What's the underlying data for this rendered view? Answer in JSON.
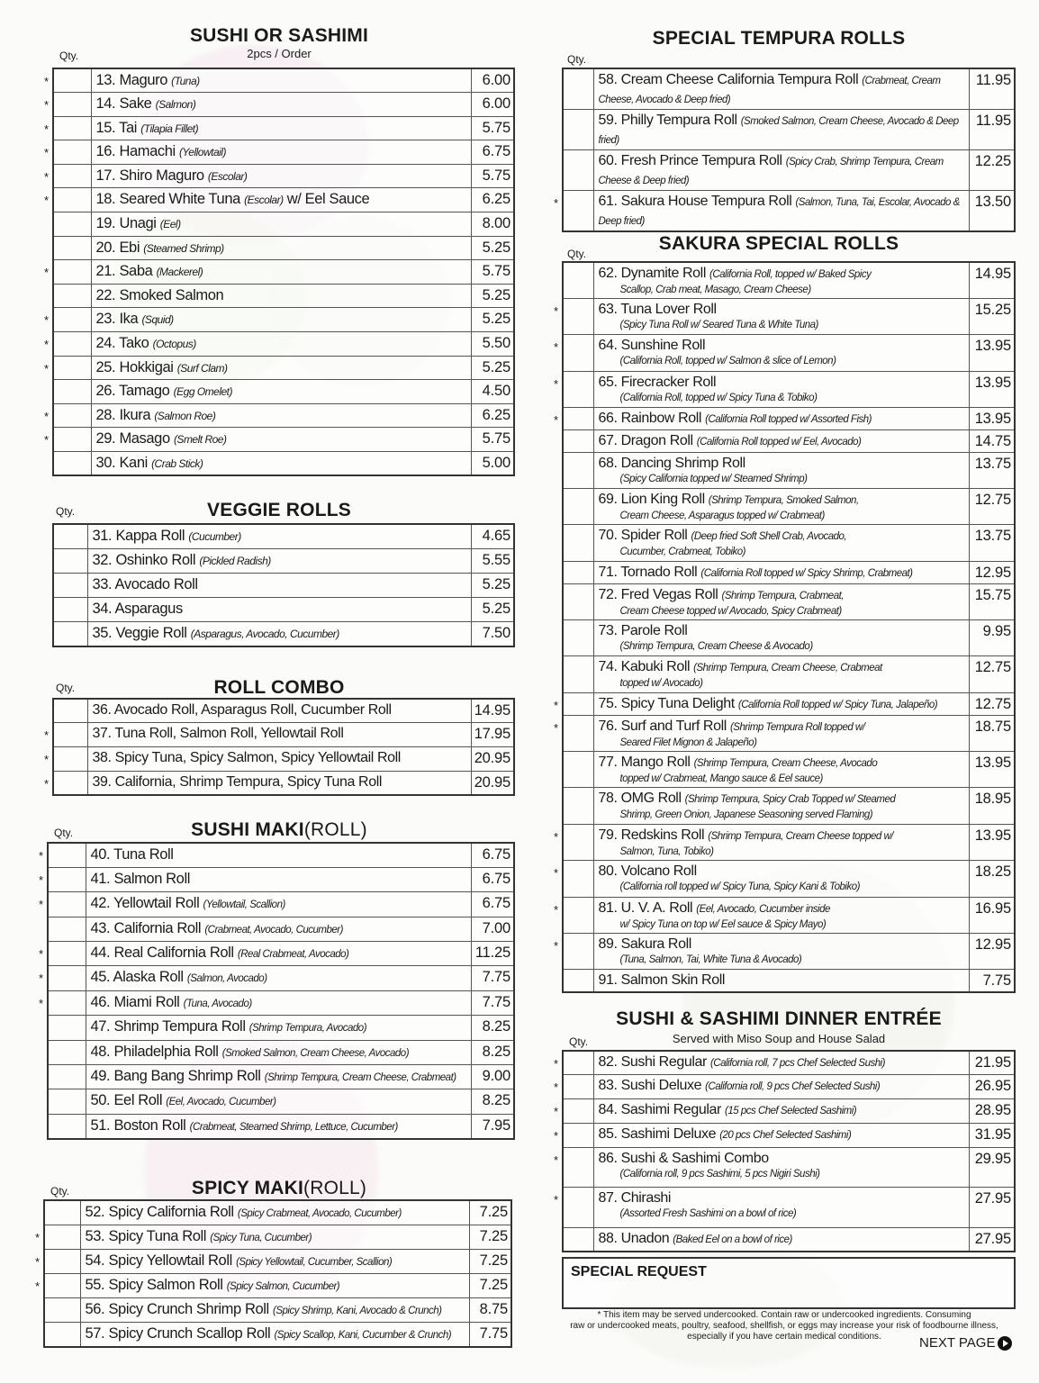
{
  "qty_label": "Qty.",
  "sections": {
    "sushi": {
      "title": "SUSHI OR SASHIMI",
      "subtitle": "2pcs / Order",
      "items": [
        {
          "num": "13.",
          "name": "Maguro",
          "desc": "(Tuna)",
          "price": "6.00",
          "star": true
        },
        {
          "num": "14.",
          "name": "Sake",
          "desc": "(Salmon)",
          "price": "6.00",
          "star": true
        },
        {
          "num": "15.",
          "name": "Tai",
          "desc": "(Tilapia Fillet)",
          "price": "5.75",
          "star": true
        },
        {
          "num": "16.",
          "name": "Hamachi",
          "desc": "(Yellowtail)",
          "price": "6.75",
          "star": true
        },
        {
          "num": "17.",
          "name": "Shiro Maguro",
          "desc": "(Escolar)",
          "price": "5.75",
          "star": true
        },
        {
          "num": "18.",
          "name": "Seared White Tuna",
          "desc": "(Escolar)",
          "extra": "w/ Eel Sauce",
          "price": "6.25",
          "star": true
        },
        {
          "num": "19.",
          "name": "Unagi",
          "desc": "(Eel)",
          "price": "8.00",
          "star": false
        },
        {
          "num": "20.",
          "name": "Ebi",
          "desc": "(Steamed Shrimp)",
          "price": "5.25",
          "star": false
        },
        {
          "num": "21.",
          "name": "Saba",
          "desc": "(Mackerel)",
          "price": "5.75",
          "star": true
        },
        {
          "num": "22.",
          "name": "Smoked Salmon",
          "desc": "",
          "price": "5.25",
          "star": false
        },
        {
          "num": "23.",
          "name": "Ika",
          "desc": "(Squid)",
          "price": "5.25",
          "star": true
        },
        {
          "num": "24.",
          "name": "Tako",
          "desc": "(Octopus)",
          "price": "5.50",
          "star": true
        },
        {
          "num": "25.",
          "name": "Hokkigai",
          "desc": "(Surf Clam)",
          "price": "5.25",
          "star": true
        },
        {
          "num": "26.",
          "name": "Tamago",
          "desc": "(Egg Omelet)",
          "price": "4.50",
          "star": false
        },
        {
          "num": "28.",
          "name": "Ikura",
          "desc": "(Salmon Roe)",
          "price": "6.25",
          "star": true
        },
        {
          "num": "29.",
          "name": "Masago",
          "desc": "(Smelt Roe)",
          "price": "5.75",
          "star": true
        },
        {
          "num": "30.",
          "name": "Kani",
          "desc": "(Crab Stick)",
          "price": "5.00",
          "star": false
        }
      ]
    },
    "veggie": {
      "title": "VEGGIE ROLLS",
      "items": [
        {
          "num": "31.",
          "name": "Kappa Roll",
          "desc": "(Cucumber)",
          "price": "4.65",
          "star": false
        },
        {
          "num": "32.",
          "name": "Oshinko Roll",
          "desc": "(Pickled Radish)",
          "price": "5.55",
          "star": false
        },
        {
          "num": "33.",
          "name": "Avocado Roll",
          "desc": "",
          "price": "5.25",
          "star": false
        },
        {
          "num": "34.",
          "name": "Asparagus",
          "desc": "",
          "price": "5.25",
          "star": false
        },
        {
          "num": "35.",
          "name": "Veggie Roll",
          "desc": "(Asparagus, Avocado, Cucumber)",
          "price": "7.50",
          "star": false
        }
      ]
    },
    "combo": {
      "title": "ROLL COMBO",
      "items": [
        {
          "num": "36.",
          "name": "Avocado Roll, Asparagus Roll, Cucumber Roll",
          "desc": "",
          "price": "14.95",
          "star": false
        },
        {
          "num": "37.",
          "name": "Tuna Roll, Salmon Roll, Yellowtail Roll",
          "desc": "",
          "price": "17.95",
          "star": true
        },
        {
          "num": "38.",
          "name": "Spicy Tuna, Spicy Salmon, Spicy Yellowtail Roll",
          "desc": "",
          "price": "20.95",
          "star": true
        },
        {
          "num": "39.",
          "name": "California, Shrimp Tempura, Spicy Tuna Roll",
          "desc": "",
          "price": "20.95",
          "star": true
        }
      ]
    },
    "maki": {
      "title": "SUSHI MAKI",
      "title_suffix": "(ROLL)",
      "items": [
        {
          "num": "40.",
          "name": "Tuna Roll",
          "desc": "",
          "price": "6.75",
          "star": true
        },
        {
          "num": "41.",
          "name": "Salmon Roll",
          "desc": "",
          "price": "6.75",
          "star": true
        },
        {
          "num": "42.",
          "name": "Yellowtail Roll",
          "desc": "(Yellowtail, Scallion)",
          "price": "6.75",
          "star": true
        },
        {
          "num": "43.",
          "name": "California Roll",
          "desc": "(Crabmeat, Avocado, Cucumber)",
          "price": "7.00",
          "star": false
        },
        {
          "num": "44.",
          "name": "Real California Roll",
          "desc": "(Real Crabmeat, Avocado)",
          "price": "11.25",
          "star": true
        },
        {
          "num": "45.",
          "name": "Alaska Roll",
          "desc": "(Salmon, Avocado)",
          "price": "7.75",
          "star": true
        },
        {
          "num": "46.",
          "name": "Miami Roll",
          "desc": "(Tuna, Avocado)",
          "price": "7.75",
          "star": true
        },
        {
          "num": "47.",
          "name": "Shrimp Tempura Roll",
          "desc": "(Shrimp Tempura, Avocado)",
          "price": "8.25",
          "star": false
        },
        {
          "num": "48.",
          "name": "Philadelphia Roll",
          "desc": "(Smoked Salmon, Cream Cheese, Avocado)",
          "price": "8.25",
          "star": false
        },
        {
          "num": "49.",
          "name": "Bang Bang Shrimp Roll",
          "desc": "(Shrimp Tempura, Cream Cheese, Crabmeat)",
          "price": "9.00",
          "star": false
        },
        {
          "num": "50.",
          "name": "Eel Roll",
          "desc": "(Eel, Avocado, Cucumber)",
          "price": "8.25",
          "star": false
        },
        {
          "num": "51.",
          "name": "Boston Roll",
          "desc": "(Crabmeat, Steamed Shrimp, Lettuce, Cucumber)",
          "price": "7.95",
          "star": false
        }
      ]
    },
    "spicy": {
      "title": "SPICY MAKI",
      "title_suffix": "(ROLL)",
      "items": [
        {
          "num": "52.",
          "name": "Spicy California Roll",
          "desc": "(Spicy Crabmeat, Avocado, Cucumber)",
          "price": "7.25",
          "star": false
        },
        {
          "num": "53.",
          "name": "Spicy Tuna Roll",
          "desc": "(Spicy Tuna, Cucumber)",
          "price": "7.25",
          "star": true
        },
        {
          "num": "54.",
          "name": "Spicy Yellowtail Roll",
          "desc": "(Spicy Yellowtail, Cucumber, Scallion)",
          "price": "7.25",
          "star": true
        },
        {
          "num": "55.",
          "name": "Spicy Salmon Roll",
          "desc": "(Spicy Salmon, Cucumber)",
          "price": "7.25",
          "star": true
        },
        {
          "num": "56.",
          "name": "Spicy Crunch Shrimp Roll",
          "desc": "(Spicy Shrimp, Kani, Avocado & Crunch)",
          "price": "8.75",
          "star": false
        },
        {
          "num": "57.",
          "name": "Spicy Crunch Scallop Roll",
          "desc": "(Spicy Scallop, Kani, Cucumber & Crunch)",
          "price": "7.75",
          "star": false
        }
      ]
    },
    "tempura": {
      "title": "SPECIAL TEMPURA ROLLS",
      "items": [
        {
          "num": "58.",
          "name": "Cream Cheese California Tempura Roll",
          "desc": "(Crabmeat, Cream Cheese, Avocado & Deep fried)",
          "price": "11.95",
          "star": false
        },
        {
          "num": "59.",
          "name": "Philly Tempura Roll",
          "desc": "(Smoked Salmon, Cream Cheese, Avocado  & Deep fried)",
          "price": "11.95",
          "star": false
        },
        {
          "num": "60.",
          "name": "Fresh Prince Tempura Roll",
          "desc": "(Spicy Crab, Shrimp Tempura, Cream Cheese & Deep fried)",
          "price": "12.25",
          "star": false
        },
        {
          "num": "61.",
          "name": "Sakura House Tempura Roll",
          "desc": "(Salmon, Tuna, Tai, Escolar, Avocado & Deep fried)",
          "price": "13.50",
          "star": true
        }
      ]
    },
    "sakura": {
      "title": "SAKURA SPECIAL ROLLS",
      "items": [
        {
          "num": "62.",
          "name": "Dynamite Roll",
          "desc": "(California Roll, topped w/ Baked Spicy",
          "desc2": "Scallop, Crab meat, Masago, Cream Cheese)",
          "price": "14.95",
          "star": false
        },
        {
          "num": "63.",
          "name": "Tuna Lover Roll",
          "desc2": "(Spicy Tuna Roll w/ Seared Tuna & White Tuna)",
          "price": "15.25",
          "star": true
        },
        {
          "num": "64.",
          "name": "Sunshine Roll",
          "desc2": "(California Roll, topped w/ Salmon & slice of Lemon)",
          "price": "13.95",
          "star": true
        },
        {
          "num": "65.",
          "name": "Firecracker Roll",
          "desc2": "(California Roll, topped w/ Spicy Tuna & Tobiko)",
          "price": "13.95",
          "star": true
        },
        {
          "num": "66.",
          "name": "Rainbow Roll",
          "desc": "(California Roll topped w/ Assorted Fish)",
          "price": "13.95",
          "star": true
        },
        {
          "num": "67.",
          "name": "Dragon Roll",
          "desc": "(California Roll topped w/ Eel, Avocado)",
          "price": "14.75",
          "star": false
        },
        {
          "num": "68.",
          "name": "Dancing Shrimp Roll",
          "desc2": "(Spicy California topped w/ Steamed Shrimp)",
          "price": "13.75",
          "star": false
        },
        {
          "num": "69.",
          "name": "Lion King Roll",
          "desc": "(Shrimp Tempura, Smoked Salmon,",
          "desc2": "Cream Cheese, Asparagus topped w/ Crabmeat)",
          "price": "12.75",
          "star": false
        },
        {
          "num": "70.",
          "name": "Spider Roll",
          "desc": "(Deep fried Soft Shell Crab, Avocado,",
          "desc2": "Cucumber, Crabmeat, Tobiko)",
          "price": "13.75",
          "star": false
        },
        {
          "num": "71.",
          "name": "Tornado Roll",
          "desc": "(California Roll topped w/ Spicy Shrimp, Crabmeat)",
          "price": "12.95",
          "star": false
        },
        {
          "num": "72.",
          "name": "Fred Vegas Roll",
          "desc": "(Shrimp Tempura, Crabmeat,",
          "desc2": "Cream Cheese topped w/ Avocado, Spicy Crabmeat)",
          "price": "15.75",
          "star": false
        },
        {
          "num": "73.",
          "name": "Parole Roll",
          "desc2": "(Shrimp Tempura, Cream Cheese & Avocado)",
          "price": "9.95",
          "star": false
        },
        {
          "num": "74.",
          "name": "Kabuki Roll",
          "desc": "(Shrimp Tempura, Cream Cheese, Crabmeat",
          "desc2": "topped w/ Avocado)",
          "price": "12.75",
          "star": false
        },
        {
          "num": "75.",
          "name": "Spicy Tuna Delight",
          "desc": "(California  Roll topped w/ Spicy Tuna, Jalapeño)",
          "price": "12.75",
          "star": true
        },
        {
          "num": "76.",
          "name": "Surf and Turf Roll",
          "desc": "(Shrimp Tempura Roll topped w/",
          "desc2": "Seared Filet Mignon & Jalapeño)",
          "price": "18.75",
          "star": true
        },
        {
          "num": "77.",
          "name": "Mango Roll",
          "desc": "(Shrimp Tempura, Cream Cheese, Avocado",
          "desc2": "topped w/ Crabmeat, Mango sauce & Eel sauce)",
          "price": "13.95",
          "star": false
        },
        {
          "num": "78.",
          "name": "OMG Roll",
          "desc": "(Shrimp Tempura, Spicy Crab Topped w/  Steamed",
          "desc2": "Shrimp, Green Onion, Japanese Seasoning served Flaming)",
          "price": "18.95",
          "star": false
        },
        {
          "num": "79.",
          "name": "Redskins Roll",
          "desc": "(Shrimp Tempura, Cream Cheese topped w/",
          "desc2": "Salmon, Tuna, Tobiko)",
          "price": "13.95",
          "star": true
        },
        {
          "num": "80.",
          "name": "Volcano Roll",
          "desc2": "(California roll topped w/ Spicy Tuna, Spicy Kani & Tobiko)",
          "price": "18.25",
          "star": true
        },
        {
          "num": "81.",
          "name": "U. V. A. Roll",
          "desc": "(Eel, Avocado, Cucumber inside",
          "desc2": "w/ Spicy Tuna on top w/ Eel sauce & Spicy Mayo)",
          "price": "16.95",
          "star": true
        },
        {
          "num": "89.",
          "name": "Sakura Roll",
          "desc2": "(Tuna, Salmon, Tai, White Tuna & Avocado)",
          "price": "12.95",
          "star": true
        },
        {
          "num": "91.",
          "name": "Salmon Skin Roll",
          "desc": "",
          "price": "7.75",
          "star": false
        }
      ]
    },
    "dinner": {
      "title": "SUSHI & SASHIMI DINNER ENTRÉE",
      "subtitle": "Served with Miso Soup and House Salad",
      "items": [
        {
          "num": "82.",
          "name": "Sushi Regular",
          "desc": "(California roll, 7 pcs Chef Selected Sushi)",
          "price": "21.95",
          "star": true
        },
        {
          "num": "83.",
          "name": "Sushi Deluxe",
          "desc": "(California roll, 9 pcs Chef Selected Sushi)",
          "price": "26.95",
          "star": true
        },
        {
          "num": "84.",
          "name": "Sashimi Regular",
          "desc": "(15 pcs Chef Selected Sashimi)",
          "price": "28.95",
          "star": true
        },
        {
          "num": "85.",
          "name": "Sashimi Deluxe",
          "desc": "(20 pcs Chef Selected Sashimi)",
          "price": "31.95",
          "star": true
        },
        {
          "num": "86.",
          "name": "Sushi & Sashimi Combo",
          "desc2": "(California roll, 9 pcs Sashimi, 5 pcs Nigiri Sushi)",
          "price": "29.95",
          "star": true
        },
        {
          "num": "87.",
          "name": "Chirashi",
          "desc2": "(Assorted Fresh Sashimi on a bowl of rice)",
          "price": "27.95",
          "star": true
        },
        {
          "num": "88.",
          "name": "Unadon",
          "desc": "(Baked Eel on a bowl of rice)",
          "price": "27.95",
          "star": false
        }
      ]
    }
  },
  "special_request_label": "SPECIAL REQUEST",
  "disclaimer": [
    "* This item may be served undercooked. Contain raw or undercooked ingredients. Consuming",
    "raw or undercooked meats, poultry, seafood, shellfish, or eggs may increase your risk of foodbourne illness,",
    "especially if you have certain medical conditions."
  ],
  "next_page_label": "NEXT PAGE",
  "colors": {
    "text": "#1a1a1a",
    "border": "#333333",
    "watermark_pink": "#f3d6e6",
    "watermark_green": "#dfe9cf"
  }
}
